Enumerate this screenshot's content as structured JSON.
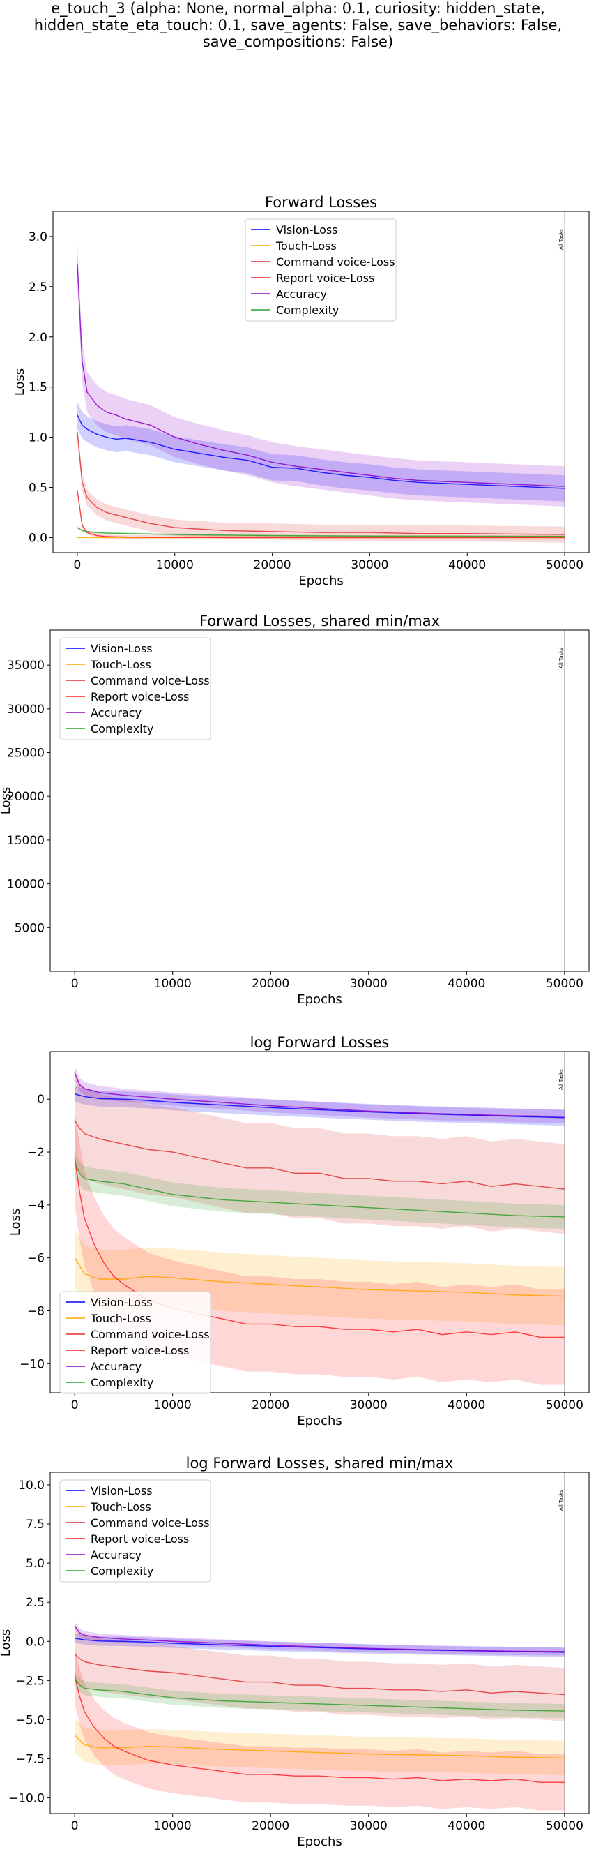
{
  "figure": {
    "suptitle_lines": [
      "e_touch_3 (alpha: None, normal_alpha: 0.1, curiosity: hidden_state,",
      "hidden_state_eta_touch: 0.1, save_agents: False, save_behaviors: False,",
      "save_compositions: False)"
    ]
  },
  "chart_data": [
    {
      "type": "line",
      "title": "Forward Losses",
      "xlabel": "Epochs",
      "ylabel": "Loss",
      "xlim": [
        -2500,
        52500
      ],
      "ylim": [
        -0.15,
        3.25
      ],
      "xticks": [
        0,
        10000,
        20000,
        30000,
        40000,
        50000
      ],
      "yticks": [
        0.0,
        0.5,
        1.0,
        1.5,
        2.0,
        2.5,
        3.0
      ],
      "ytick_labels": [
        "0.0",
        "0.5",
        "1.0",
        "1.5",
        "2.0",
        "2.5",
        "3.0"
      ],
      "legend_position": "top-center",
      "grid": false,
      "vline": {
        "x": 50000,
        "label": "All Tasks"
      },
      "series": [
        {
          "name": "Vision-Loss",
          "color": "#0000ff",
          "band": 0.13,
          "x": [
            0,
            500,
            1000,
            2000,
            3000,
            4000,
            5000,
            7500,
            10000,
            12500,
            15000,
            17500,
            20000,
            22500,
            25000,
            27500,
            30000,
            32500,
            35000,
            37500,
            40000,
            42500,
            45000,
            47500,
            50000
          ],
          "values": [
            1.22,
            1.12,
            1.08,
            1.03,
            1.0,
            0.98,
            0.99,
            0.95,
            0.88,
            0.84,
            0.8,
            0.77,
            0.7,
            0.69,
            0.65,
            0.62,
            0.6,
            0.57,
            0.55,
            0.54,
            0.53,
            0.52,
            0.51,
            0.5,
            0.49
          ]
        },
        {
          "name": "Touch-Loss",
          "color": "#ffa500",
          "band": 0.0,
          "x": [
            0,
            50000
          ],
          "values": [
            0.0,
            0.0
          ]
        },
        {
          "name": "Command voice-Loss",
          "color": "#e03030",
          "band": 0.08,
          "x": [
            0,
            500,
            1000,
            2000,
            3000,
            5000,
            7500,
            10000,
            15000,
            20000,
            25000,
            30000,
            35000,
            40000,
            45000,
            50000
          ],
          "values": [
            1.05,
            0.55,
            0.4,
            0.3,
            0.25,
            0.2,
            0.14,
            0.1,
            0.07,
            0.06,
            0.05,
            0.05,
            0.04,
            0.04,
            0.035,
            0.03
          ]
        },
        {
          "name": "Report voice-Loss",
          "color": "#ff2020",
          "band": 0.02,
          "x": [
            0,
            500,
            1000,
            2000,
            3000,
            5000,
            10000,
            20000,
            30000,
            40000,
            50000
          ],
          "values": [
            0.47,
            0.12,
            0.05,
            0.02,
            0.01,
            0.005,
            0.002,
            0.001,
            0.001,
            0.001,
            0.001
          ]
        },
        {
          "name": "Accuracy",
          "color": "#8b00c8",
          "band": 0.2,
          "x": [
            0,
            500,
            1000,
            2000,
            3000,
            4000,
            5000,
            7500,
            10000,
            12500,
            15000,
            17500,
            20000,
            22500,
            25000,
            27500,
            30000,
            32500,
            35000,
            37500,
            40000,
            42500,
            45000,
            47500,
            50000
          ],
          "values": [
            2.73,
            1.75,
            1.45,
            1.32,
            1.25,
            1.22,
            1.18,
            1.12,
            1.0,
            0.93,
            0.87,
            0.82,
            0.75,
            0.71,
            0.68,
            0.65,
            0.62,
            0.59,
            0.57,
            0.56,
            0.55,
            0.54,
            0.53,
            0.52,
            0.51
          ]
        },
        {
          "name": "Complexity",
          "color": "#2ca02c",
          "band": 0.01,
          "x": [
            0,
            500,
            1000,
            2000,
            3000,
            5000,
            10000,
            20000,
            30000,
            40000,
            50000
          ],
          "values": [
            0.1,
            0.07,
            0.06,
            0.05,
            0.045,
            0.04,
            0.03,
            0.02,
            0.015,
            0.013,
            0.012
          ]
        }
      ]
    },
    {
      "type": "line",
      "title": "Forward Losses, shared min/max",
      "xlabel": "Epochs",
      "ylabel": "Loss",
      "xlim": [
        -2500,
        52500
      ],
      "ylim": [
        0,
        39000
      ],
      "xticks": [
        0,
        10000,
        20000,
        30000,
        40000,
        50000
      ],
      "yticks": [
        5000,
        10000,
        15000,
        20000,
        25000,
        30000,
        35000
      ],
      "ytick_labels": [
        "5000",
        "10000",
        "15000",
        "20000",
        "25000",
        "30000",
        "35000"
      ],
      "legend_position": "top-left",
      "grid": false,
      "vline": {
        "x": 50000,
        "label": "All Tasks"
      },
      "series": [
        {
          "name": "Vision-Loss",
          "color": "#0000ff",
          "band": 0,
          "x": [
            0,
            50000
          ],
          "values": [
            1.2,
            0.5
          ]
        },
        {
          "name": "Touch-Loss",
          "color": "#ffa500",
          "band": 0,
          "x": [
            0,
            50000
          ],
          "values": [
            0.0,
            0.0
          ]
        },
        {
          "name": "Command voice-Loss",
          "color": "#e03030",
          "band": 0,
          "x": [
            0,
            50000
          ],
          "values": [
            1.0,
            0.03
          ]
        },
        {
          "name": "Report voice-Loss",
          "color": "#ff2020",
          "band": 0,
          "x": [
            0,
            50000
          ],
          "values": [
            0.5,
            0.0
          ]
        },
        {
          "name": "Accuracy",
          "color": "#8b00c8",
          "band": 0,
          "x": [
            0,
            50000
          ],
          "values": [
            2.7,
            0.5
          ]
        },
        {
          "name": "Complexity",
          "color": "#2ca02c",
          "band": 0,
          "x": [
            0,
            50000
          ],
          "values": [
            0.1,
            0.01
          ]
        }
      ]
    },
    {
      "type": "line",
      "title": "log Forward Losses",
      "xlabel": "Epochs",
      "ylabel": "Loss",
      "xlim": [
        -2500,
        52500
      ],
      "ylim": [
        -11.1,
        1.8
      ],
      "xticks": [
        0,
        10000,
        20000,
        30000,
        40000,
        50000
      ],
      "yticks": [
        -10,
        -8,
        -6,
        -4,
        -2,
        0
      ],
      "ytick_labels": [
        "−10",
        "−8",
        "−6",
        "−4",
        "−2",
        "0"
      ],
      "legend_position": "lower-left",
      "grid": false,
      "vline": {
        "x": 50000,
        "label": "All Tasks"
      },
      "series": [
        {
          "name": "Vision-Loss",
          "color": "#0000ff",
          "band": 0.3,
          "x": [
            0,
            1000,
            2500,
            5000,
            7500,
            10000,
            15000,
            20000,
            25000,
            30000,
            35000,
            40000,
            45000,
            50000
          ],
          "values": [
            0.2,
            0.1,
            0.02,
            0.0,
            -0.05,
            -0.12,
            -0.22,
            -0.32,
            -0.4,
            -0.48,
            -0.55,
            -0.6,
            -0.65,
            -0.7
          ]
        },
        {
          "name": "Touch-Loss",
          "color": "#ffa500",
          "band": 1.1,
          "x": [
            0,
            1000,
            2500,
            5000,
            7500,
            10000,
            15000,
            20000,
            25000,
            30000,
            35000,
            40000,
            45000,
            50000
          ],
          "values": [
            -6.0,
            -6.6,
            -6.8,
            -6.8,
            -6.7,
            -6.75,
            -6.9,
            -7.0,
            -7.1,
            -7.2,
            -7.25,
            -7.3,
            -7.4,
            -7.45
          ]
        },
        {
          "name": "Command voice-Loss",
          "color": "#e03030",
          "band": 1.7,
          "x": [
            0,
            500,
            1000,
            2500,
            5000,
            7500,
            10000,
            12500,
            15000,
            17500,
            20000,
            22500,
            25000,
            27500,
            30000,
            32500,
            35000,
            37500,
            40000,
            42500,
            45000,
            47500,
            50000
          ],
          "values": [
            -0.8,
            -1.1,
            -1.3,
            -1.5,
            -1.7,
            -1.9,
            -2.0,
            -2.2,
            -2.4,
            -2.6,
            -2.6,
            -2.8,
            -2.8,
            -3.0,
            -3.0,
            -3.1,
            -3.1,
            -3.2,
            -3.1,
            -3.3,
            -3.2,
            -3.3,
            -3.4
          ]
        },
        {
          "name": "Report voice-Loss",
          "color": "#ff2020",
          "band": 1.8,
          "x": [
            0,
            500,
            1000,
            2000,
            3000,
            4000,
            5000,
            7500,
            10000,
            12500,
            15000,
            17500,
            20000,
            22500,
            25000,
            27500,
            30000,
            32500,
            35000,
            37500,
            40000,
            42500,
            45000,
            47500,
            50000
          ],
          "values": [
            -2.2,
            -3.5,
            -4.5,
            -5.5,
            -6.2,
            -6.7,
            -7.0,
            -7.6,
            -7.9,
            -8.1,
            -8.3,
            -8.5,
            -8.5,
            -8.6,
            -8.6,
            -8.7,
            -8.7,
            -8.8,
            -8.7,
            -8.9,
            -8.8,
            -8.9,
            -8.8,
            -9.0,
            -9.0
          ]
        },
        {
          "name": "Accuracy",
          "color": "#8b00c8",
          "band": 0.25,
          "x": [
            0,
            500,
            1000,
            2500,
            5000,
            7500,
            10000,
            15000,
            20000,
            25000,
            30000,
            35000,
            40000,
            45000,
            50000
          ],
          "values": [
            1.0,
            0.55,
            0.4,
            0.25,
            0.15,
            0.08,
            0.0,
            -0.12,
            -0.25,
            -0.35,
            -0.45,
            -0.52,
            -0.58,
            -0.63,
            -0.65
          ]
        },
        {
          "name": "Complexity",
          "color": "#2ca02c",
          "band": 0.45,
          "x": [
            0,
            500,
            1000,
            2500,
            5000,
            7500,
            10000,
            15000,
            20000,
            25000,
            30000,
            35000,
            40000,
            45000,
            50000
          ],
          "values": [
            -2.4,
            -2.8,
            -3.0,
            -3.1,
            -3.2,
            -3.4,
            -3.6,
            -3.8,
            -3.9,
            -4.0,
            -4.1,
            -4.2,
            -4.3,
            -4.4,
            -4.45
          ]
        }
      ]
    },
    {
      "type": "line",
      "title": "log Forward Losses, shared min/max",
      "xlabel": "Epochs",
      "ylabel": "Loss",
      "xlim": [
        -2500,
        52500
      ],
      "ylim": [
        -11.0,
        10.8
      ],
      "xticks": [
        0,
        10000,
        20000,
        30000,
        40000,
        50000
      ],
      "yticks": [
        -10.0,
        -7.5,
        -5.0,
        -2.5,
        0.0,
        2.5,
        5.0,
        7.5,
        10.0
      ],
      "ytick_labels": [
        "−10.0",
        "−7.5",
        "−5.0",
        "−2.5",
        "0.0",
        "2.5",
        "5.0",
        "7.5",
        "10.0"
      ],
      "legend_position": "top-left",
      "grid": false,
      "vline": {
        "x": 50000,
        "label": "All Tasks"
      },
      "series": [
        {
          "name": "Vision-Loss",
          "color": "#0000ff",
          "band": 0.3,
          "x": [
            0,
            1000,
            2500,
            5000,
            7500,
            10000,
            15000,
            20000,
            25000,
            30000,
            35000,
            40000,
            45000,
            50000
          ],
          "values": [
            0.2,
            0.1,
            0.02,
            0.0,
            -0.05,
            -0.12,
            -0.22,
            -0.32,
            -0.4,
            -0.48,
            -0.55,
            -0.6,
            -0.65,
            -0.7
          ]
        },
        {
          "name": "Touch-Loss",
          "color": "#ffa500",
          "band": 1.1,
          "x": [
            0,
            1000,
            2500,
            5000,
            7500,
            10000,
            15000,
            20000,
            25000,
            30000,
            35000,
            40000,
            45000,
            50000
          ],
          "values": [
            -6.0,
            -6.6,
            -6.8,
            -6.8,
            -6.7,
            -6.75,
            -6.9,
            -7.0,
            -7.1,
            -7.2,
            -7.25,
            -7.3,
            -7.4,
            -7.45
          ]
        },
        {
          "name": "Command voice-Loss",
          "color": "#e03030",
          "band": 1.7,
          "x": [
            0,
            500,
            1000,
            2500,
            5000,
            7500,
            10000,
            12500,
            15000,
            17500,
            20000,
            22500,
            25000,
            27500,
            30000,
            32500,
            35000,
            37500,
            40000,
            42500,
            45000,
            47500,
            50000
          ],
          "values": [
            -0.8,
            -1.1,
            -1.3,
            -1.5,
            -1.7,
            -1.9,
            -2.0,
            -2.2,
            -2.4,
            -2.6,
            -2.6,
            -2.8,
            -2.8,
            -3.0,
            -3.0,
            -3.1,
            -3.1,
            -3.2,
            -3.1,
            -3.3,
            -3.2,
            -3.3,
            -3.4
          ]
        },
        {
          "name": "Report voice-Loss",
          "color": "#ff2020",
          "band": 1.8,
          "x": [
            0,
            500,
            1000,
            2000,
            3000,
            4000,
            5000,
            7500,
            10000,
            12500,
            15000,
            17500,
            20000,
            22500,
            25000,
            27500,
            30000,
            32500,
            35000,
            37500,
            40000,
            42500,
            45000,
            47500,
            50000
          ],
          "values": [
            -2.2,
            -3.5,
            -4.5,
            -5.5,
            -6.2,
            -6.7,
            -7.0,
            -7.6,
            -7.9,
            -8.1,
            -8.3,
            -8.5,
            -8.5,
            -8.6,
            -8.6,
            -8.7,
            -8.7,
            -8.8,
            -8.7,
            -8.9,
            -8.8,
            -8.9,
            -8.8,
            -9.0,
            -9.0
          ]
        },
        {
          "name": "Accuracy",
          "color": "#8b00c8",
          "band": 0.25,
          "x": [
            0,
            500,
            1000,
            2500,
            5000,
            7500,
            10000,
            15000,
            20000,
            25000,
            30000,
            35000,
            40000,
            45000,
            50000
          ],
          "values": [
            1.0,
            0.55,
            0.4,
            0.25,
            0.15,
            0.08,
            0.0,
            -0.12,
            -0.25,
            -0.35,
            -0.45,
            -0.52,
            -0.58,
            -0.63,
            -0.65
          ]
        },
        {
          "name": "Complexity",
          "color": "#2ca02c",
          "band": 0.45,
          "x": [
            0,
            500,
            1000,
            2500,
            5000,
            7500,
            10000,
            15000,
            20000,
            25000,
            30000,
            35000,
            40000,
            45000,
            50000
          ],
          "values": [
            -2.4,
            -2.8,
            -3.0,
            -3.1,
            -3.2,
            -3.4,
            -3.6,
            -3.8,
            -3.9,
            -4.0,
            -4.1,
            -4.2,
            -4.3,
            -4.4,
            -4.45
          ]
        }
      ]
    }
  ]
}
